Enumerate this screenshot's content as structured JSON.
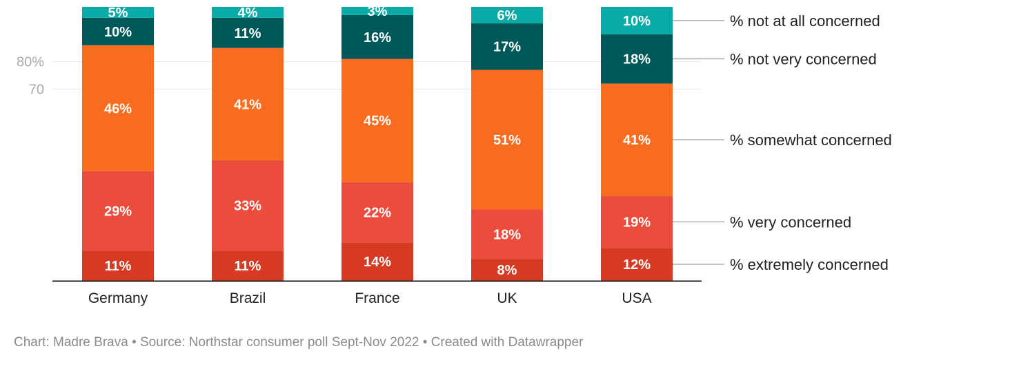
{
  "chart_data": {
    "type": "bar",
    "stacked": true,
    "categories": [
      "Germany",
      "Brazil",
      "France",
      "UK",
      "USA"
    ],
    "series": [
      {
        "name": "% extremely concerned",
        "color": "#d63a22",
        "values": [
          11,
          11,
          14,
          8,
          12
        ],
        "labels": [
          "11%",
          "11%",
          "14%",
          "8%",
          "12%"
        ]
      },
      {
        "name": "% very concerned",
        "color": "#ec4c3c",
        "values": [
          29,
          33,
          22,
          18,
          19
        ],
        "labels": [
          "29%",
          "33%",
          "22%",
          "18%",
          "19%"
        ]
      },
      {
        "name": "% somewhat concerned",
        "color": "#f76c1f",
        "values": [
          46,
          41,
          45,
          51,
          41
        ],
        "labels": [
          "46%",
          "41%",
          "45%",
          "51%",
          "41%"
        ]
      },
      {
        "name": "% not very concerned",
        "color": "#005859",
        "values": [
          10,
          11,
          16,
          17,
          18
        ],
        "labels": [
          "10%",
          "11%",
          "16%",
          "17%",
          "18%"
        ]
      },
      {
        "name": "% not at all concerned",
        "color": "#0aaba6",
        "values": [
          5,
          4,
          3,
          6,
          10
        ],
        "labels": [
          "5%",
          "4%",
          "3%",
          "6%",
          "10%"
        ]
      }
    ],
    "y_ticks": [
      {
        "value": 70,
        "label": "70"
      },
      {
        "value": 80,
        "label": "80%"
      }
    ],
    "ylim": [
      0,
      100
    ],
    "grid": true,
    "legend": "right, labels attached to last bar"
  },
  "footer": "Chart: Madre Brava • Source: Northstar consumer poll Sept-Nov 2022 • Created with Datawrapper"
}
